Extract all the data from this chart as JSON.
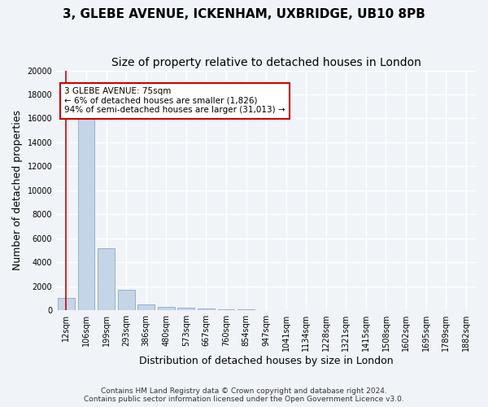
{
  "title1": "3, GLEBE AVENUE, ICKENHAM, UXBRIDGE, UB10 8PB",
  "title2": "Size of property relative to detached houses in London",
  "xlabel": "Distribution of detached houses by size in London",
  "ylabel": "Number of detached properties",
  "bar_color": "#c5d5e8",
  "bar_edge_color": "#7a9abf",
  "categories": [
    "12sqm",
    "106sqm",
    "199sqm",
    "293sqm",
    "386sqm",
    "480sqm",
    "573sqm",
    "667sqm",
    "760sqm",
    "854sqm",
    "947sqm",
    "1041sqm",
    "1134sqm",
    "1228sqm",
    "1321sqm",
    "1415sqm",
    "1508sqm",
    "1602sqm",
    "1695sqm",
    "1789sqm",
    "1882sqm"
  ],
  "values": [
    1050,
    16500,
    5200,
    1700,
    500,
    300,
    200,
    140,
    100,
    60,
    30,
    15,
    8,
    5,
    3,
    2,
    2,
    1,
    1,
    1,
    1
  ],
  "ylim": [
    0,
    20000
  ],
  "yticks": [
    0,
    2000,
    4000,
    6000,
    8000,
    10000,
    12000,
    14000,
    16000,
    18000,
    20000
  ],
  "annotation_text": "3 GLEBE AVENUE: 75sqm\n← 6% of detached houses are smaller (1,826)\n94% of semi-detached houses are larger (31,013) →",
  "vline_x": 0,
  "annotation_box_color": "#ffffff",
  "annotation_box_edge": "#cc0000",
  "footer1": "Contains HM Land Registry data © Crown copyright and database right 2024.",
  "footer2": "Contains public sector information licensed under the Open Government Licence v3.0.",
  "background_color": "#f0f4f8",
  "grid_color": "#ffffff",
  "title_fontsize": 11,
  "subtitle_fontsize": 10,
  "tick_fontsize": 7,
  "label_fontsize": 9
}
